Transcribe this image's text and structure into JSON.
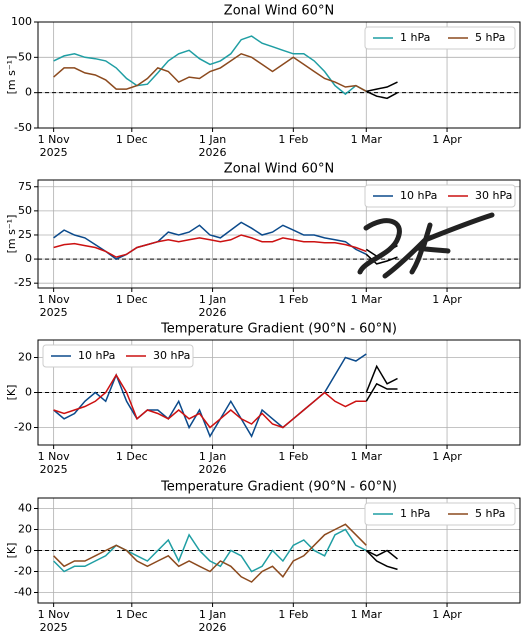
{
  "chart_data": [
    {
      "type": "line",
      "title": "Zonal Wind 60°N",
      "y_label": "[m s⁻¹]",
      "x": [
        0,
        4,
        8,
        12,
        16,
        20,
        24,
        28,
        32,
        36,
        40,
        44,
        48,
        52,
        56,
        60,
        64,
        68,
        72,
        76,
        80,
        84,
        88,
        92,
        96,
        100,
        104,
        108,
        112,
        116,
        120,
        124,
        128,
        132
      ],
      "xlim": [
        -6,
        179
      ],
      "xticks": [
        {
          "value": 0,
          "label": "1 Nov\n2025"
        },
        {
          "value": 30,
          "label": "1 Dec"
        },
        {
          "value": 61,
          "label": "1 Jan\n2026"
        },
        {
          "value": 92,
          "label": "1 Feb"
        },
        {
          "value": 120,
          "label": "1 Mar"
        },
        {
          "value": 151,
          "label": "1 Apr"
        }
      ],
      "ylim": [
        -50,
        100
      ],
      "yticks": [
        -50,
        0,
        50,
        100
      ],
      "grid": true,
      "legend": "upper right",
      "series": [
        {
          "name": "1 hPa",
          "color": "#1f9ea3",
          "values": [
            45,
            52,
            55,
            50,
            48,
            45,
            35,
            20,
            10,
            12,
            28,
            45,
            55,
            60,
            48,
            40,
            45,
            55,
            75,
            80,
            70,
            65,
            60,
            55,
            55,
            45,
            30,
            10,
            -2,
            10,
            2,
            null,
            null,
            null
          ]
        },
        {
          "name": "5 hPa",
          "color": "#8c4a1e",
          "values": [
            22,
            35,
            35,
            28,
            25,
            18,
            5,
            5,
            10,
            20,
            35,
            30,
            15,
            22,
            20,
            30,
            35,
            45,
            55,
            50,
            40,
            30,
            40,
            50,
            40,
            30,
            20,
            15,
            8,
            10,
            2,
            null,
            null,
            null
          ]
        },
        {
          "color": "#000000",
          "values": [
            null,
            null,
            null,
            null,
            null,
            null,
            null,
            null,
            null,
            null,
            null,
            null,
            null,
            null,
            null,
            null,
            null,
            null,
            null,
            null,
            null,
            null,
            null,
            null,
            null,
            null,
            null,
            null,
            null,
            null,
            2,
            5,
            8,
            15
          ]
        },
        {
          "color": "#000000",
          "values": [
            null,
            null,
            null,
            null,
            null,
            null,
            null,
            null,
            null,
            null,
            null,
            null,
            null,
            null,
            null,
            null,
            null,
            null,
            null,
            null,
            null,
            null,
            null,
            null,
            null,
            null,
            null,
            null,
            null,
            null,
            2,
            -5,
            -8,
            0
          ]
        }
      ]
    },
    {
      "type": "line",
      "title": "Zonal Wind 60°N",
      "y_label": "[m s⁻¹]",
      "x": [
        0,
        4,
        8,
        12,
        16,
        20,
        24,
        28,
        32,
        36,
        40,
        44,
        48,
        52,
        56,
        60,
        64,
        68,
        72,
        76,
        80,
        84,
        88,
        92,
        96,
        100,
        104,
        108,
        112,
        116,
        120,
        124,
        128,
        132
      ],
      "xlim": [
        -6,
        179
      ],
      "xticks": [
        {
          "value": 0,
          "label": "1 Nov\n2025"
        },
        {
          "value": 30,
          "label": "1 Dec"
        },
        {
          "value": 61,
          "label": "1 Jan\n2026"
        },
        {
          "value": 92,
          "label": "1 Feb"
        },
        {
          "value": 120,
          "label": "1 Mar"
        },
        {
          "value": 151,
          "label": "1 Apr"
        }
      ],
      "ylim": [
        -30,
        82
      ],
      "yticks": [
        -25,
        0,
        25,
        50,
        75
      ],
      "grid": true,
      "legend": "upper right",
      "series": [
        {
          "name": "10 hPa",
          "color": "#0b4a8b",
          "values": [
            22,
            30,
            25,
            22,
            15,
            8,
            0,
            5,
            12,
            15,
            18,
            28,
            25,
            28,
            35,
            25,
            22,
            30,
            38,
            32,
            25,
            28,
            35,
            30,
            25,
            25,
            22,
            20,
            18,
            10,
            5,
            null,
            null,
            null
          ]
        },
        {
          "name": "30 hPa",
          "color": "#cc1111",
          "values": [
            12,
            15,
            16,
            14,
            12,
            8,
            2,
            5,
            12,
            15,
            18,
            20,
            18,
            20,
            22,
            20,
            18,
            20,
            25,
            22,
            18,
            18,
            22,
            20,
            18,
            18,
            17,
            17,
            15,
            12,
            8,
            null,
            null,
            null
          ]
        },
        {
          "color": "#000000",
          "values": [
            null,
            null,
            null,
            null,
            null,
            null,
            null,
            null,
            null,
            null,
            null,
            null,
            null,
            null,
            null,
            null,
            null,
            null,
            null,
            null,
            null,
            null,
            null,
            null,
            null,
            null,
            null,
            null,
            null,
            null,
            10,
            3,
            8,
            14
          ]
        },
        {
          "color": "#000000",
          "values": [
            null,
            null,
            null,
            null,
            null,
            null,
            null,
            null,
            null,
            null,
            null,
            null,
            null,
            null,
            null,
            null,
            null,
            null,
            null,
            null,
            null,
            null,
            null,
            null,
            null,
            null,
            null,
            null,
            null,
            null,
            5,
            -5,
            -2,
            2
          ]
        }
      ]
    },
    {
      "type": "line",
      "title": "Temperature Gradient (90°N - 60°N)",
      "y_label": "[K]",
      "x": [
        0,
        4,
        8,
        12,
        16,
        20,
        24,
        28,
        32,
        36,
        40,
        44,
        48,
        52,
        56,
        60,
        64,
        68,
        72,
        76,
        80,
        84,
        88,
        92,
        96,
        100,
        104,
        108,
        112,
        116,
        120,
        124,
        128,
        132
      ],
      "xlim": [
        -6,
        179
      ],
      "xticks": [
        {
          "value": 0,
          "label": "1 Nov\n2025"
        },
        {
          "value": 30,
          "label": "1 Dec"
        },
        {
          "value": 61,
          "label": "1 Jan\n2026"
        },
        {
          "value": 92,
          "label": "1 Feb"
        },
        {
          "value": 120,
          "label": "1 Mar"
        },
        {
          "value": 151,
          "label": "1 Apr"
        }
      ],
      "ylim": [
        -30,
        30
      ],
      "yticks": [
        -20,
        0,
        20
      ],
      "grid": true,
      "legend": "upper left",
      "series": [
        {
          "name": "10 hPa",
          "color": "#0b4a8b",
          "values": [
            -10,
            -15,
            -12,
            -5,
            0,
            -5,
            10,
            -5,
            -15,
            -10,
            -10,
            -15,
            -5,
            -20,
            -10,
            -25,
            -15,
            -5,
            -15,
            -25,
            -10,
            -15,
            -20,
            -15,
            -10,
            -5,
            0,
            10,
            20,
            18,
            22,
            null,
            null,
            null
          ]
        },
        {
          "name": "30 hPa",
          "color": "#cc1111",
          "values": [
            -10,
            -12,
            -10,
            -8,
            -5,
            0,
            10,
            0,
            -15,
            -10,
            -12,
            -15,
            -10,
            -15,
            -12,
            -20,
            -15,
            -10,
            -15,
            -18,
            -12,
            -18,
            -20,
            -15,
            -10,
            -5,
            0,
            -5,
            -8,
            -5,
            -5,
            null,
            null,
            null
          ]
        },
        {
          "color": "#000000",
          "values": [
            null,
            null,
            null,
            null,
            null,
            null,
            null,
            null,
            null,
            null,
            null,
            null,
            null,
            null,
            null,
            null,
            null,
            null,
            null,
            null,
            null,
            null,
            null,
            null,
            null,
            null,
            null,
            null,
            null,
            null,
            0,
            15,
            5,
            8
          ]
        },
        {
          "color": "#000000",
          "values": [
            null,
            null,
            null,
            null,
            null,
            null,
            null,
            null,
            null,
            null,
            null,
            null,
            null,
            null,
            null,
            null,
            null,
            null,
            null,
            null,
            null,
            null,
            null,
            null,
            null,
            null,
            null,
            null,
            null,
            null,
            -5,
            5,
            2,
            2
          ]
        }
      ]
    },
    {
      "type": "line",
      "title": "Temperature Gradient (90°N - 60°N)",
      "y_label": "[K]",
      "x": [
        0,
        4,
        8,
        12,
        16,
        20,
        24,
        28,
        32,
        36,
        40,
        44,
        48,
        52,
        56,
        60,
        64,
        68,
        72,
        76,
        80,
        84,
        88,
        92,
        96,
        100,
        104,
        108,
        112,
        116,
        120,
        124,
        128,
        132
      ],
      "xlim": [
        -6,
        179
      ],
      "xticks": [
        {
          "value": 0,
          "label": "1 Nov\n2025"
        },
        {
          "value": 30,
          "label": "1 Dec"
        },
        {
          "value": 61,
          "label": "1 Jan\n2026"
        },
        {
          "value": 92,
          "label": "1 Feb"
        },
        {
          "value": 120,
          "label": "1 Mar"
        },
        {
          "value": 151,
          "label": "1 Apr"
        }
      ],
      "ylim": [
        -50,
        50
      ],
      "yticks": [
        -40,
        -20,
        0,
        20,
        40
      ],
      "grid": true,
      "legend": "upper right",
      "series": [
        {
          "name": "1 hPa",
          "color": "#1f9ea3",
          "values": [
            -10,
            -20,
            -15,
            -15,
            -10,
            -5,
            5,
            0,
            -5,
            -10,
            0,
            10,
            -10,
            15,
            0,
            -10,
            -15,
            0,
            -5,
            -20,
            -15,
            0,
            -10,
            5,
            10,
            0,
            -5,
            15,
            20,
            5,
            0,
            null,
            null,
            null
          ]
        },
        {
          "name": "5 hPa",
          "color": "#8c4a1e",
          "values": [
            -5,
            -15,
            -10,
            -10,
            -5,
            0,
            5,
            0,
            -10,
            -15,
            -10,
            -5,
            -15,
            -10,
            -15,
            -20,
            -10,
            -15,
            -25,
            -30,
            -20,
            -15,
            -25,
            -10,
            -5,
            5,
            15,
            20,
            25,
            15,
            5,
            null,
            null,
            null
          ]
        },
        {
          "color": "#000000",
          "values": [
            null,
            null,
            null,
            null,
            null,
            null,
            null,
            null,
            null,
            null,
            null,
            null,
            null,
            null,
            null,
            null,
            null,
            null,
            null,
            null,
            null,
            null,
            null,
            null,
            null,
            null,
            null,
            null,
            null,
            null,
            0,
            -5,
            0,
            -8
          ]
        },
        {
          "color": "#000000",
          "values": [
            null,
            null,
            null,
            null,
            null,
            null,
            null,
            null,
            null,
            null,
            null,
            null,
            null,
            null,
            null,
            null,
            null,
            null,
            null,
            null,
            null,
            null,
            null,
            null,
            null,
            null,
            null,
            null,
            null,
            null,
            0,
            -10,
            -15,
            -18
          ]
        }
      ]
    }
  ]
}
